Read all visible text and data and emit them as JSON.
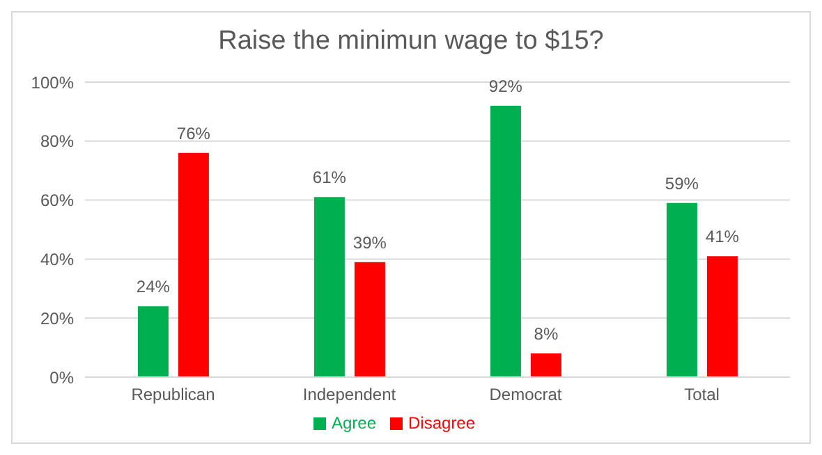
{
  "chart_data": {
    "type": "bar",
    "title": "Raise the minimun wage to $15?",
    "categories": [
      "Republican",
      "Independent",
      "Democrat",
      "Total"
    ],
    "series": [
      {
        "name": "Agree",
        "color": "#00b050",
        "values": [
          24,
          61,
          92,
          59
        ],
        "value_labels": [
          "24%",
          "61%",
          "92%",
          "59%"
        ]
      },
      {
        "name": "Disagree",
        "color": "#ff0000",
        "values": [
          76,
          39,
          8,
          41
        ],
        "value_labels": [
          "76%",
          "39%",
          "8%",
          "41%"
        ]
      }
    ],
    "ylim": [
      0,
      100
    ],
    "yticks": [
      {
        "value": 0,
        "label": "0%"
      },
      {
        "value": 20,
        "label": "20%"
      },
      {
        "value": 40,
        "label": "40%"
      },
      {
        "value": 60,
        "label": "60%"
      },
      {
        "value": 80,
        "label": "80%"
      },
      {
        "value": 100,
        "label": "100%"
      }
    ],
    "grid": "y",
    "legend": "bottom"
  }
}
